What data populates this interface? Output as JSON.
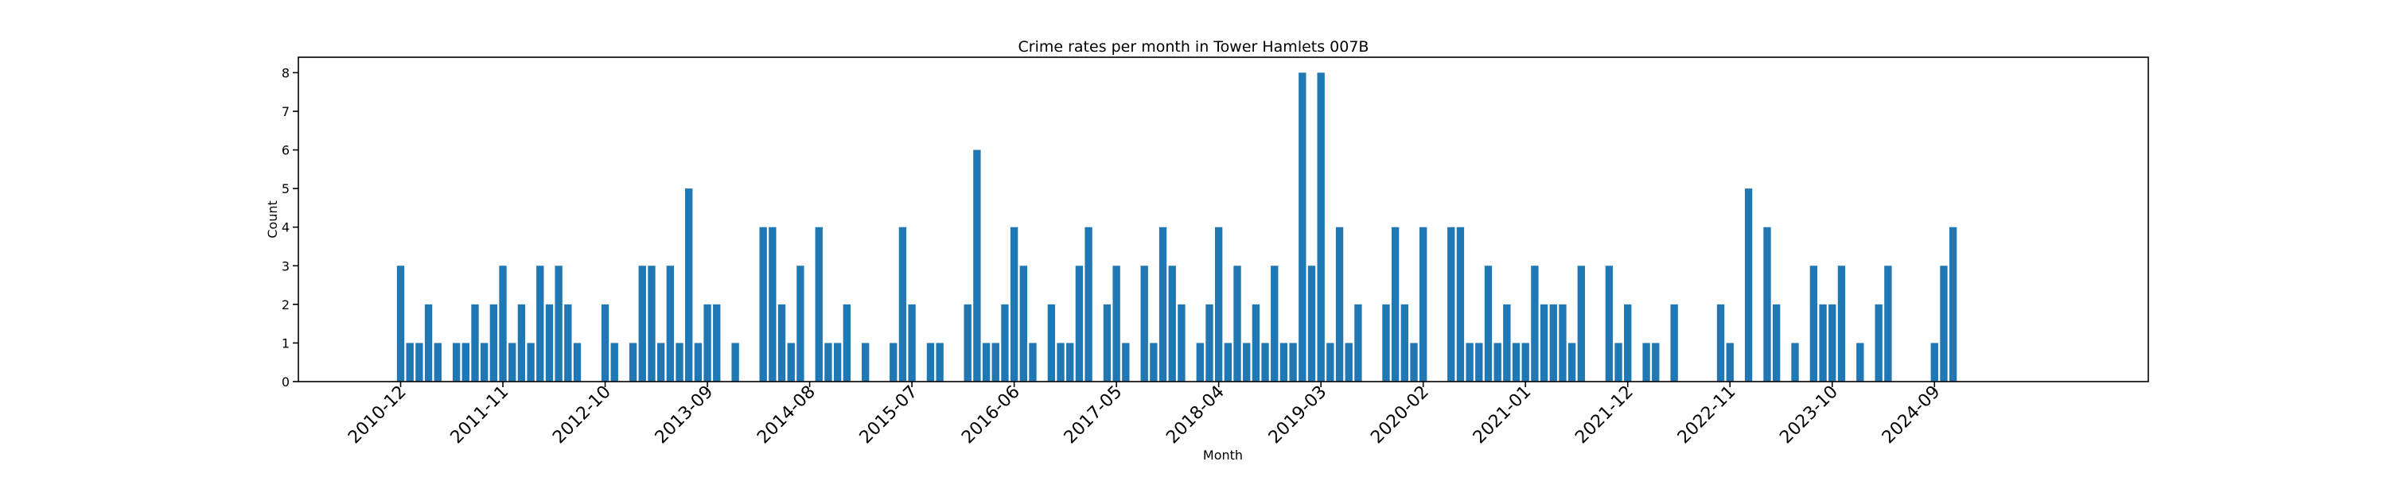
{
  "chart_data": {
    "type": "bar",
    "title": "Crime rates per month in Tower Hamlets 007B",
    "xlabel": "Month",
    "ylabel": "Count",
    "ylim": [
      0,
      8.4
    ],
    "yticks": [
      0,
      1,
      2,
      3,
      4,
      5,
      6,
      7,
      8
    ],
    "xlim": [
      "2010-01",
      "2026-08"
    ],
    "xticks": [
      "2010-12",
      "2011-11",
      "2012-10",
      "2013-09",
      "2014-08",
      "2015-07",
      "2016-06",
      "2017-05",
      "2018-04",
      "2019-03",
      "2020-02",
      "2021-01",
      "2021-12",
      "2022-11",
      "2023-10",
      "2024-09"
    ],
    "grid": false,
    "bar_color": "#1f77b4",
    "categories": [
      "2010-12",
      "2011-01",
      "2011-02",
      "2011-03",
      "2011-04",
      "2011-06",
      "2011-07",
      "2011-08",
      "2011-09",
      "2011-10",
      "2011-11",
      "2011-12",
      "2012-01",
      "2012-02",
      "2012-03",
      "2012-04",
      "2012-05",
      "2012-06",
      "2012-07",
      "2012-10",
      "2012-11",
      "2013-01",
      "2013-02",
      "2013-03",
      "2013-04",
      "2013-05",
      "2013-06",
      "2013-07",
      "2013-08",
      "2013-09",
      "2013-10",
      "2013-12",
      "2014-03",
      "2014-04",
      "2014-05",
      "2014-06",
      "2014-07",
      "2014-09",
      "2014-10",
      "2014-11",
      "2014-12",
      "2015-02",
      "2015-05",
      "2015-06",
      "2015-07",
      "2015-09",
      "2015-10",
      "2016-01",
      "2016-02",
      "2016-03",
      "2016-04",
      "2016-05",
      "2016-06",
      "2016-07",
      "2016-08",
      "2016-10",
      "2016-11",
      "2016-12",
      "2017-01",
      "2017-02",
      "2017-04",
      "2017-05",
      "2017-06",
      "2017-08",
      "2017-09",
      "2017-10",
      "2017-11",
      "2017-12",
      "2018-02",
      "2018-03",
      "2018-04",
      "2018-05",
      "2018-06",
      "2018-07",
      "2018-08",
      "2018-09",
      "2018-10",
      "2018-11",
      "2018-12",
      "2019-01",
      "2019-02",
      "2019-03",
      "2019-04",
      "2019-05",
      "2019-06",
      "2019-07",
      "2019-10",
      "2019-11",
      "2019-12",
      "2020-01",
      "2020-02",
      "2020-05",
      "2020-06",
      "2020-07",
      "2020-08",
      "2020-09",
      "2020-10",
      "2020-11",
      "2020-12",
      "2021-01",
      "2021-02",
      "2021-03",
      "2021-04",
      "2021-05",
      "2021-06",
      "2021-07",
      "2021-10",
      "2021-11",
      "2021-12",
      "2022-02",
      "2022-03",
      "2022-05",
      "2022-10",
      "2022-11",
      "2023-01",
      "2023-03",
      "2023-04",
      "2023-06",
      "2023-08",
      "2023-09",
      "2023-10",
      "2023-11",
      "2024-01",
      "2024-03",
      "2024-04",
      "2024-09",
      "2024-10",
      "2024-11"
    ],
    "values": [
      3,
      1,
      1,
      2,
      1,
      1,
      1,
      2,
      1,
      2,
      3,
      1,
      2,
      1,
      3,
      2,
      3,
      2,
      1,
      2,
      1,
      1,
      3,
      3,
      1,
      3,
      1,
      5,
      1,
      2,
      2,
      1,
      4,
      4,
      2,
      1,
      3,
      4,
      1,
      1,
      2,
      1,
      1,
      4,
      2,
      1,
      1,
      2,
      6,
      1,
      1,
      2,
      4,
      3,
      1,
      2,
      1,
      1,
      3,
      4,
      2,
      3,
      1,
      3,
      1,
      4,
      3,
      2,
      1,
      2,
      4,
      1,
      3,
      1,
      2,
      1,
      3,
      1,
      1,
      8,
      3,
      8,
      1,
      4,
      1,
      2,
      2,
      4,
      2,
      1,
      4,
      4,
      4,
      1,
      1,
      3,
      1,
      2,
      1,
      1,
      3,
      2,
      2,
      2,
      1,
      3,
      3,
      1,
      2,
      1,
      1,
      2,
      2,
      1,
      5,
      4,
      2,
      1,
      3,
      2,
      2,
      3,
      1,
      2,
      3,
      1,
      3,
      4
    ]
  }
}
